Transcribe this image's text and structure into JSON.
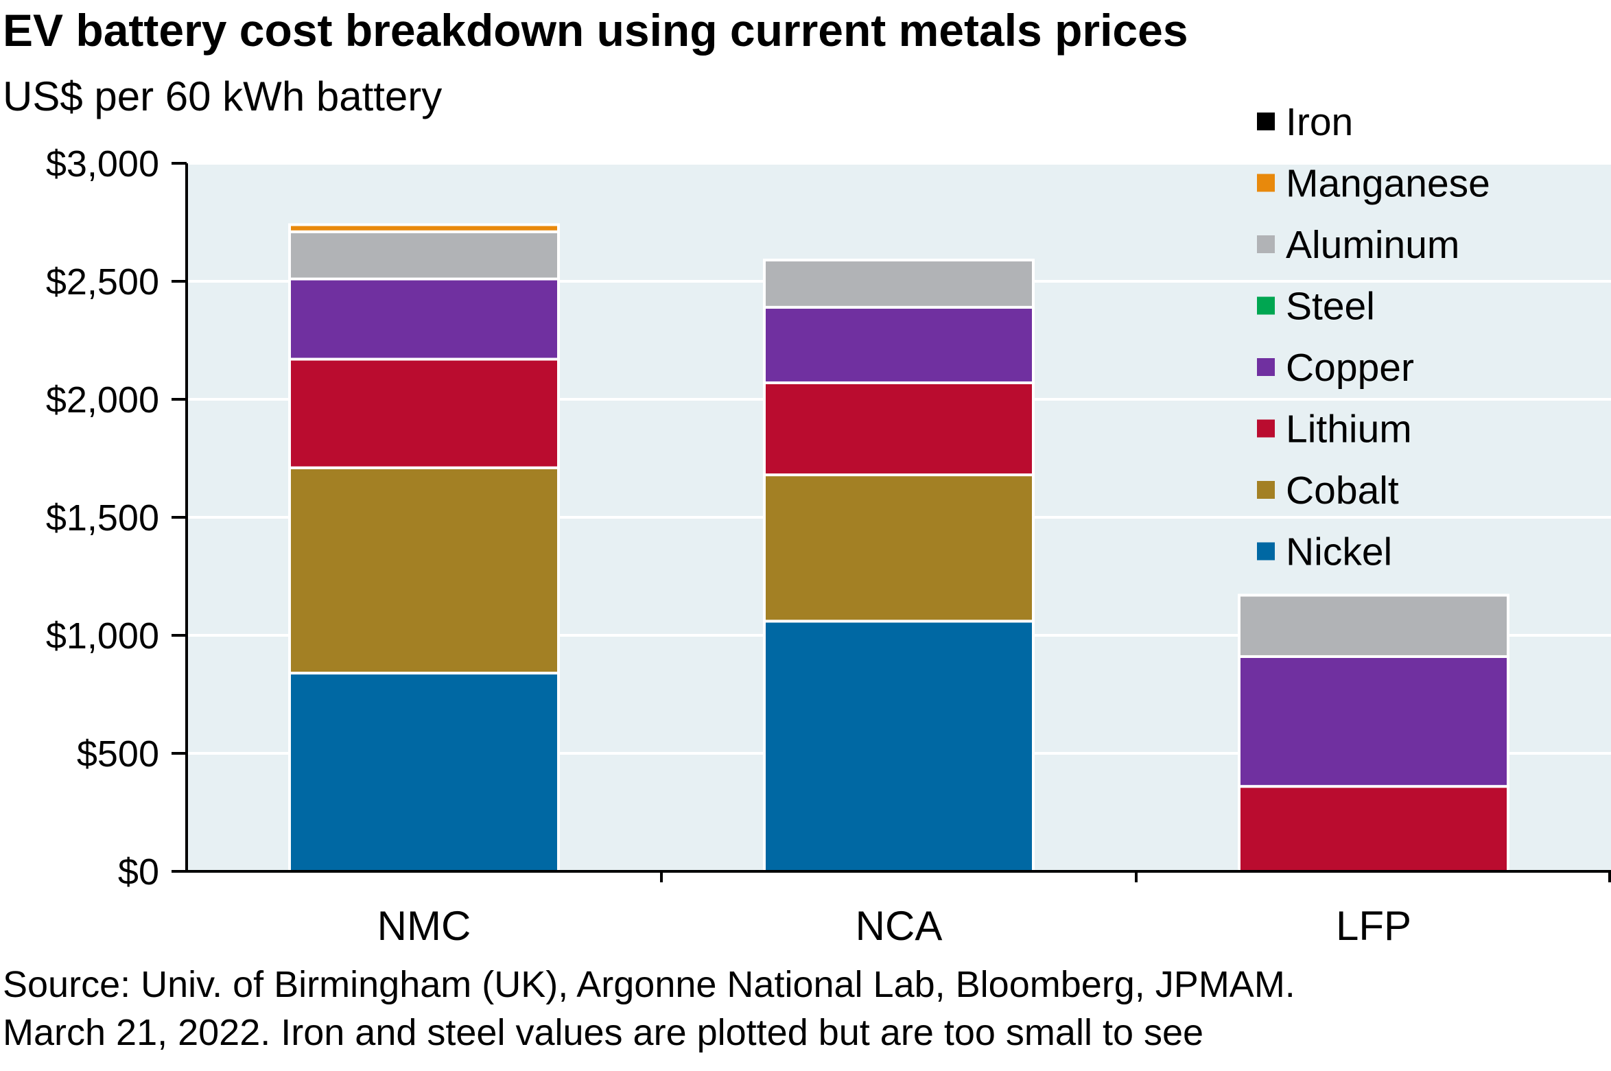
{
  "title": "EV battery cost breakdown using current metals prices",
  "subtitle": "US$ per 60 kWh battery",
  "source_line1": "Source: Univ. of Birmingham (UK), Argonne National Lab, Bloomberg, JPMAM.",
  "source_line2": "March 21, 2022. Iron and steel values are plotted but are too small to see",
  "colors": {
    "Nickel": "#0068a3",
    "Cobalt": "#a38024",
    "Lithium": "#ba0c2f",
    "Copper": "#7030a0",
    "Steel": "#00a651",
    "Aluminum": "#b1b3b6",
    "Manganese": "#e8890c",
    "Iron": "#000000",
    "plot_bg": "#e7f0f3"
  },
  "chart_data": {
    "type": "bar",
    "stacked": true,
    "categories": [
      "NMC",
      "NCA",
      "LFP"
    ],
    "series": [
      {
        "name": "Nickel",
        "values": [
          840,
          1060,
          0
        ]
      },
      {
        "name": "Cobalt",
        "values": [
          870,
          620,
          0
        ]
      },
      {
        "name": "Lithium",
        "values": [
          460,
          390,
          360
        ]
      },
      {
        "name": "Copper",
        "values": [
          340,
          320,
          550
        ]
      },
      {
        "name": "Steel",
        "values": [
          0,
          0,
          0
        ]
      },
      {
        "name": "Aluminum",
        "values": [
          200,
          200,
          260
        ]
      },
      {
        "name": "Manganese",
        "values": [
          30,
          0,
          0
        ]
      },
      {
        "name": "Iron",
        "values": [
          0,
          0,
          0
        ]
      }
    ],
    "legend_order": [
      "Iron",
      "Manganese",
      "Aluminum",
      "Steel",
      "Copper",
      "Lithium",
      "Cobalt",
      "Nickel"
    ],
    "legend_position": "top-right",
    "y_ticks": [
      0,
      500,
      1000,
      1500,
      2000,
      2500,
      3000
    ],
    "y_tick_labels": [
      "$0",
      "$500",
      "$1,000",
      "$1,500",
      "$2,000",
      "$2,500",
      "$3,000"
    ],
    "ylim": [
      0,
      3000
    ],
    "grid": true
  }
}
